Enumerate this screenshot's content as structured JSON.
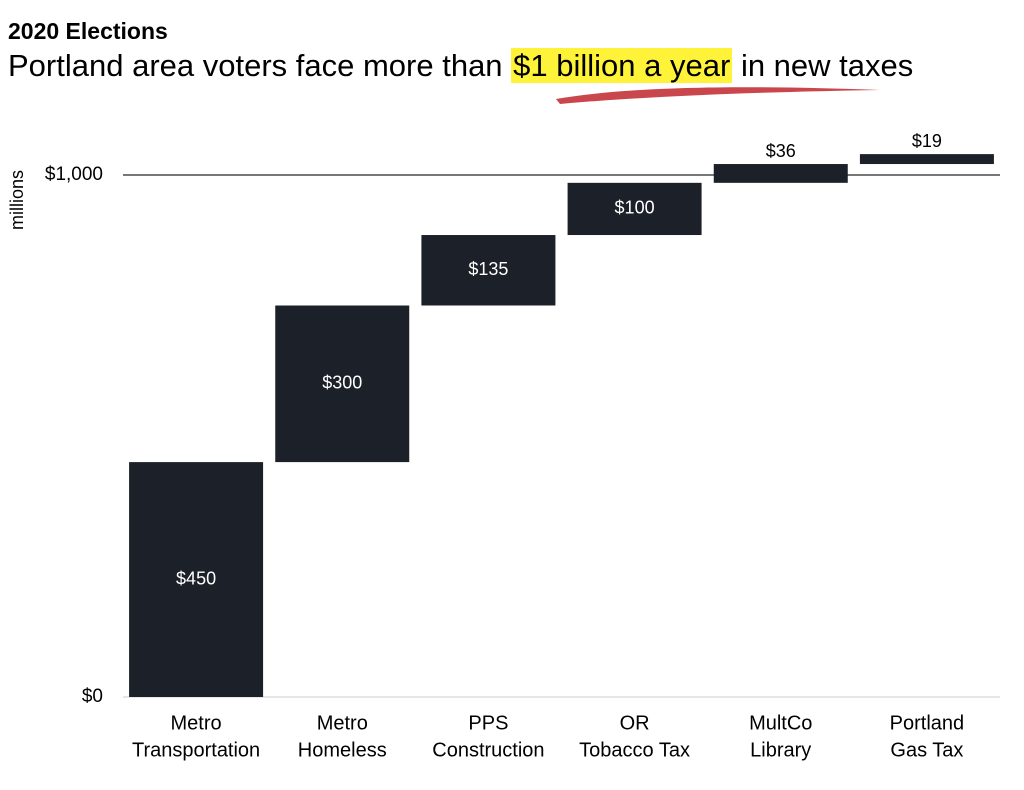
{
  "chart_data": {
    "type": "waterfall",
    "title": "2020 Elections",
    "subtitle": [
      "Portland area voters face more than",
      "$1 billion a year",
      "in new taxes"
    ],
    "ylabel": "millions",
    "categories": [
      [
        "Metro",
        "Transportation"
      ],
      [
        "Metro",
        "Homeless"
      ],
      [
        "PPS",
        "Construction"
      ],
      [
        "OR",
        "Tobacco Tax"
      ],
      [
        "MultCo",
        "Library"
      ],
      [
        "Portland",
        "Gas Tax"
      ]
    ],
    "values": [
      450,
      300,
      135,
      100,
      36,
      19
    ],
    "value_labels": [
      "$450",
      "$300",
      "$135",
      "$100",
      "$36",
      "$19"
    ],
    "color": "#1c2028",
    "ylim": [
      0,
      1000
    ],
    "yticks": [
      {
        "value": 0,
        "label": "$0"
      },
      {
        "value": 1000,
        "label": "$1,000"
      }
    ],
    "grid": true
  }
}
